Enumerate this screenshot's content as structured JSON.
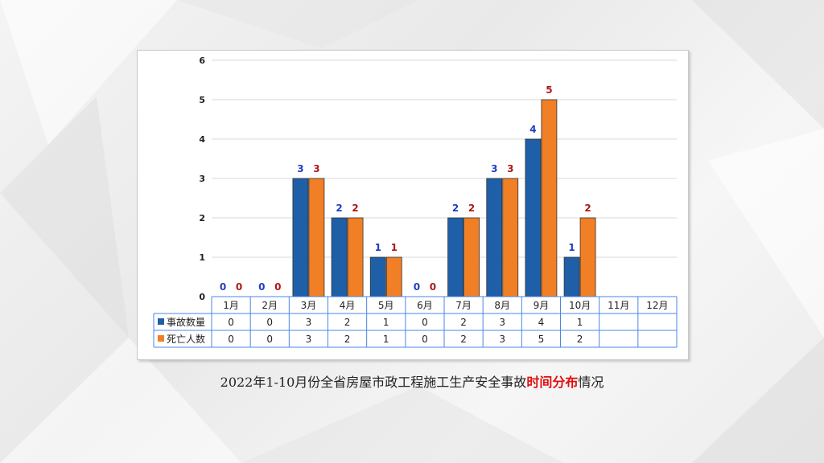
{
  "chart_data": {
    "type": "bar",
    "categories": [
      "1月",
      "2月",
      "3月",
      "4月",
      "5月",
      "6月",
      "7月",
      "8月",
      "9月",
      "10月",
      "11月",
      "12月"
    ],
    "series": [
      {
        "name": "事故数量",
        "values": [
          0,
          0,
          3,
          2,
          1,
          0,
          2,
          3,
          4,
          1,
          null,
          null
        ],
        "color": "#1f5fa8",
        "label_color": "#1f3fbf"
      },
      {
        "name": "死亡人数",
        "values": [
          0,
          0,
          3,
          2,
          1,
          0,
          2,
          3,
          5,
          2,
          null,
          null
        ],
        "color": "#f07f26",
        "label_color": "#b01818"
      }
    ],
    "ylim": [
      0,
      6
    ],
    "yticks": [
      0,
      1,
      2,
      3,
      4,
      5,
      6
    ],
    "grid": true,
    "data_table": true,
    "data_labels": true
  },
  "caption": {
    "part1": "2022年1-10月份全省房屋市政工程施工生产安全事故",
    "highlight": "时间分布",
    "part2": "情况"
  }
}
